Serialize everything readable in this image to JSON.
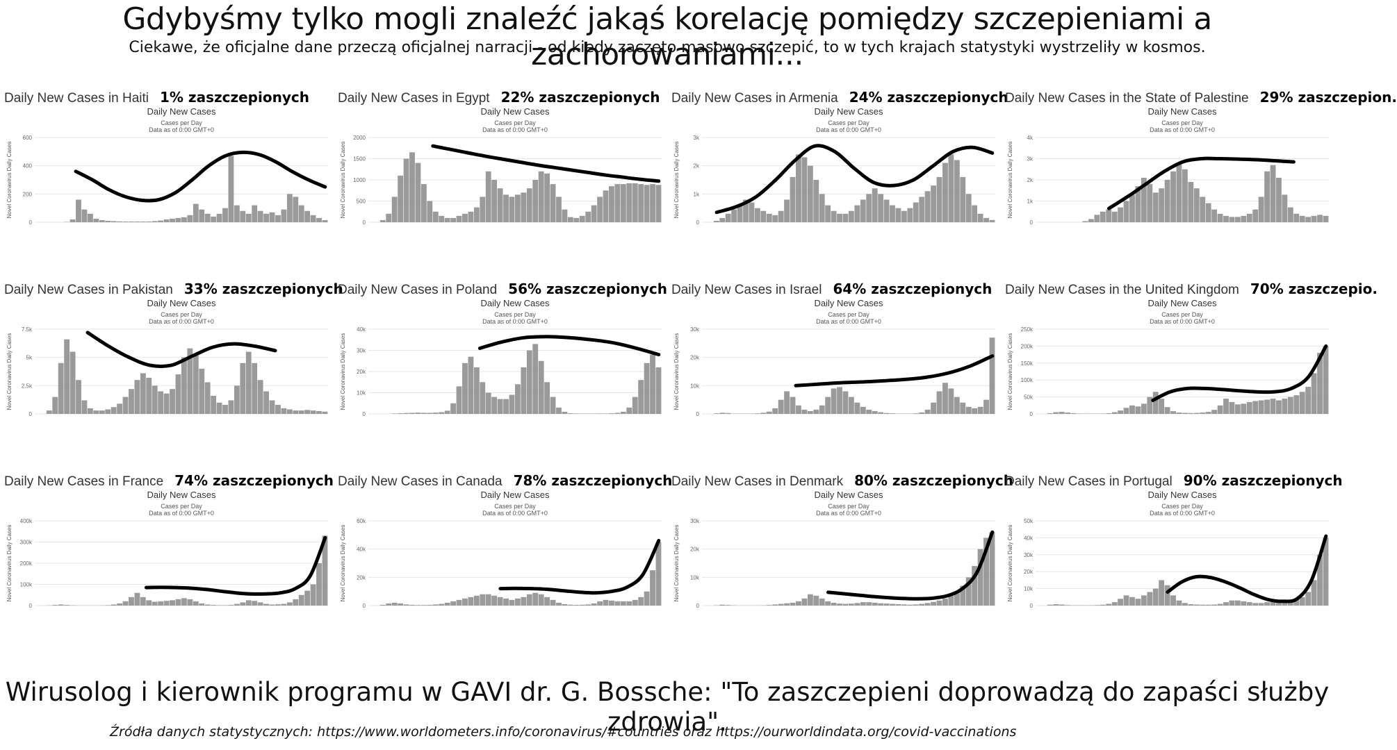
{
  "header": {
    "title": "Gdybyśmy tylko mogli znaleźć jakąś korelację pomiędzy szczepieniami a zachorowaniami...",
    "subtitle": "Ciekawe, że oficjalne dane przeczą oficjalnej narracji - od kiedy zaczęto masowo szczepić, to w tych krajach statystyki wystrzeliły w kosmos."
  },
  "footer": {
    "quote": "Wirusolog i kierownik programu w GAVI dr. G. Bossche: \"To zaszczepieni doprowadzą do zapaści służby zdrowia\".",
    "sources": "Źródła danych statystycznych: https://www.worldometers.info/coronavirus/#countries oraz https://ourworldindata.org/covid-vaccinations"
  },
  "colors": {
    "bars": "#9a9a9a",
    "trend": "#000000",
    "grid": "#e6e6e6",
    "text": "#111111"
  },
  "chart_data": [
    {
      "type": "bar",
      "label": "Daily New Cases in Haiti",
      "vaccinated": "1% zaszczepionych",
      "title": "Daily New Cases",
      "subtitle_1": "Cases per Day",
      "subtitle_2": "Data as of 0:00 GMT+0",
      "ylabel": "Novel Coronavirus Daily Cases",
      "yticks": [
        "0",
        "200",
        "400",
        "600"
      ],
      "ylim": [
        0,
        600
      ],
      "bars": [
        0,
        0,
        0,
        0,
        0,
        2,
        20,
        160,
        90,
        60,
        25,
        15,
        10,
        8,
        6,
        5,
        5,
        5,
        5,
        5,
        8,
        12,
        20,
        25,
        30,
        35,
        50,
        130,
        90,
        60,
        40,
        60,
        100,
        470,
        120,
        80,
        60,
        120,
        80,
        60,
        70,
        50,
        90,
        200,
        180,
        120,
        80,
        50,
        30,
        15
      ],
      "trend": [
        360,
        300,
        230,
        180,
        155,
        160,
        210,
        300,
        400,
        470,
        495,
        480,
        430,
        360,
        300,
        250
      ]
    },
    {
      "type": "bar",
      "label": "Daily New Cases in Egypt",
      "vaccinated": "22% zaszczepionych",
      "title": "Daily New Cases",
      "subtitle_1": "Cases per Day",
      "subtitle_2": "Data as of 0:00 GMT+0",
      "ylabel": "Novel Coronavirus Daily Cases",
      "yticks": [
        "0",
        "500",
        "1000",
        "1500",
        "2000"
      ],
      "ylim": [
        0,
        2000
      ],
      "bars": [
        0,
        0,
        50,
        200,
        600,
        1100,
        1500,
        1650,
        1400,
        900,
        500,
        250,
        150,
        100,
        100,
        150,
        200,
        250,
        350,
        600,
        1200,
        1000,
        800,
        650,
        600,
        650,
        700,
        800,
        1000,
        1200,
        1150,
        900,
        600,
        300,
        120,
        100,
        150,
        250,
        400,
        600,
        750,
        850,
        900,
        900,
        920,
        920,
        900,
        880,
        900,
        880
      ],
      "trend": [
        1800,
        1720,
        1640,
        1560,
        1490,
        1420,
        1350,
        1290,
        1230,
        1170,
        1110,
        1060,
        1010,
        970
      ]
    },
    {
      "type": "bar",
      "label": "Daily New Cases in Armenia",
      "vaccinated": "24% zaszczepionych",
      "title": "Daily New Cases",
      "subtitle_1": "Cases per Day",
      "subtitle_2": "Data as of 0:00 GMT+0",
      "ylabel": "Novel Coronavirus Daily Cases",
      "yticks": [
        "0",
        "1k",
        "2k",
        "3k"
      ],
      "ylim": [
        0,
        3000
      ],
      "bars": [
        0,
        0,
        50,
        150,
        300,
        450,
        600,
        800,
        700,
        500,
        400,
        300,
        250,
        400,
        800,
        1600,
        2400,
        2300,
        2000,
        1500,
        1000,
        600,
        400,
        300,
        300,
        400,
        600,
        800,
        1000,
        1200,
        1000,
        800,
        600,
        500,
        400,
        500,
        700,
        900,
        1100,
        1300,
        1600,
        2100,
        2400,
        2200,
        1600,
        1000,
        600,
        300,
        150,
        80
      ],
      "trend": [
        350,
        550,
        900,
        1500,
        2200,
        2700,
        2500,
        1900,
        1400,
        1300,
        1500,
        2000,
        2500,
        2650,
        2450
      ]
    },
    {
      "type": "bar",
      "label": "Daily New Cases in the State of Palestine",
      "vaccinated": "29% zaszczepion.",
      "title": "Daily New Cases",
      "subtitle_1": "Cases per Day",
      "subtitle_2": "Data as of 0:00 GMT+0",
      "ylabel": "Novel Coronavirus Daily Cases",
      "yticks": [
        "0",
        "1k",
        "2k",
        "3k",
        "4k"
      ],
      "ylim": [
        0,
        4000
      ],
      "bars": [
        0,
        0,
        0,
        0,
        0,
        0,
        0,
        0,
        50,
        150,
        350,
        500,
        600,
        500,
        700,
        1000,
        1300,
        1700,
        2100,
        1800,
        1400,
        1600,
        2000,
        2400,
        2800,
        2500,
        1900,
        1600,
        1200,
        900,
        600,
        400,
        300,
        250,
        250,
        300,
        400,
        600,
        1200,
        2400,
        2700,
        2100,
        1300,
        700,
        400,
        300,
        250,
        300,
        350,
        300
      ],
      "trend": [
        650,
        1200,
        1800,
        2400,
        2850,
        3000,
        3000,
        2980,
        2950,
        2900,
        2850
      ]
    },
    {
      "type": "bar",
      "label": "Daily New Cases in Pakistan",
      "vaccinated": "33% zaszczepionych",
      "title": "Daily New Cases",
      "subtitle_1": "Cases per Day",
      "subtitle_2": "Data as of 0:00 GMT+0",
      "ylabel": "Novel Coronavirus Daily Cases",
      "yticks": [
        "0",
        "2.5k",
        "5k",
        "7.5k"
      ],
      "ylim": [
        0,
        7500
      ],
      "bars": [
        0,
        0,
        300,
        1500,
        4500,
        6600,
        5500,
        3000,
        1200,
        500,
        300,
        300,
        400,
        600,
        900,
        1500,
        2200,
        3000,
        3600,
        3200,
        2500,
        2000,
        1800,
        2200,
        3500,
        5000,
        5800,
        5200,
        4000,
        2800,
        1600,
        1000,
        800,
        1200,
        2500,
        4500,
        5500,
        4500,
        3000,
        2000,
        1200,
        800,
        500,
        400,
        300,
        300,
        350,
        300,
        250,
        200
      ],
      "trend": [
        7200,
        6000,
        5000,
        4300,
        4300,
        5100,
        5900,
        6200,
        6000,
        5600
      ]
    },
    {
      "type": "bar",
      "label": "Daily New Cases in Poland",
      "vaccinated": "56% zaszczepionych",
      "title": "Daily New Cases",
      "subtitle_1": "Cases per Day",
      "subtitle_2": "Data as of 0:00 GMT+0",
      "ylabel": "Novel Coronavirus Daily Cases",
      "yticks": [
        "0",
        "10k",
        "20k",
        "30k",
        "40k"
      ],
      "ylim": [
        0,
        40000
      ],
      "bars": [
        0,
        0,
        0,
        0,
        200,
        300,
        400,
        500,
        600,
        500,
        500,
        600,
        800,
        1500,
        5000,
        13000,
        24000,
        27000,
        22000,
        15000,
        10000,
        8000,
        7000,
        7000,
        9000,
        14000,
        22000,
        30000,
        33000,
        25000,
        15000,
        8000,
        3000,
        1000,
        300,
        200,
        150,
        150,
        150,
        200,
        200,
        300,
        500,
        1000,
        3000,
        8000,
        16000,
        24000,
        28000,
        22000
      ],
      "trend": [
        31000,
        34000,
        36000,
        36500,
        36000,
        35000,
        33500,
        31000,
        28000
      ]
    },
    {
      "type": "bar",
      "label": "Daily New Cases in Israel",
      "vaccinated": "64% zaszczepionych",
      "title": "Daily New Cases",
      "subtitle_1": "Cases per Day",
      "subtitle_2": "Data as of 0:00 GMT+0",
      "ylabel": "Novel Coronavirus Daily Cases",
      "yticks": [
        "0",
        "10k",
        "20k",
        "30k"
      ],
      "ylim": [
        0,
        30000
      ],
      "bars": [
        0,
        0,
        200,
        400,
        300,
        100,
        100,
        100,
        100,
        200,
        400,
        800,
        2000,
        5000,
        8000,
        6000,
        3000,
        1500,
        1000,
        1500,
        3000,
        6000,
        9000,
        9500,
        8000,
        6000,
        4000,
        2500,
        1500,
        1000,
        600,
        300,
        200,
        100,
        100,
        100,
        200,
        500,
        1500,
        4000,
        8000,
        11000,
        9000,
        6000,
        4000,
        2500,
        2000,
        2500,
        5000,
        27000
      ],
      "trend": [
        10000,
        10500,
        11000,
        11300,
        11700,
        12200,
        13000,
        14500,
        17000,
        20500
      ]
    },
    {
      "type": "bar",
      "label": "Daily New Cases in the United Kingdom",
      "vaccinated": "70% zaszczepio.",
      "title": "Daily New Cases",
      "subtitle_1": "Cases per Day",
      "subtitle_2": "Data as of 0:00 GMT+0",
      "ylabel": "Novel Coronavirus Daily Cases",
      "yticks": [
        "0",
        "50k",
        "100k",
        "150k",
        "200k",
        "250k"
      ],
      "ylim": [
        0,
        250000
      ],
      "bars": [
        0,
        0,
        2000,
        5000,
        6000,
        4000,
        2000,
        1000,
        700,
        700,
        800,
        1000,
        2000,
        5000,
        10000,
        18000,
        25000,
        22000,
        30000,
        50000,
        65000,
        45000,
        20000,
        8000,
        4000,
        3000,
        2500,
        3000,
        4000,
        6000,
        12000,
        25000,
        45000,
        35000,
        28000,
        30000,
        35000,
        38000,
        40000,
        42000,
        45000,
        40000,
        45000,
        50000,
        55000,
        65000,
        80000,
        120000,
        180000,
        200000
      ],
      "trend": [
        40000,
        65000,
        75000,
        75000,
        72000,
        68000,
        65000,
        65000,
        75000,
        110000,
        200000
      ]
    },
    {
      "type": "bar",
      "label": "Daily New Cases in France",
      "vaccinated": "74% zaszczepionych",
      "title": "Daily New Cases",
      "subtitle_1": "Cases per Day",
      "subtitle_2": "Data as of 0:00 GMT+0",
      "ylabel": "Novel Coronavirus Daily Cases",
      "yticks": [
        "0",
        "100k",
        "200k",
        "300k",
        "400k"
      ],
      "ylim": [
        0,
        400000
      ],
      "bars": [
        0,
        0,
        1000,
        3000,
        5000,
        3000,
        1500,
        800,
        600,
        600,
        700,
        1000,
        2000,
        5000,
        10000,
        20000,
        40000,
        60000,
        40000,
        25000,
        18000,
        20000,
        22000,
        25000,
        30000,
        35000,
        30000,
        20000,
        10000,
        5000,
        3000,
        2000,
        2000,
        3000,
        8000,
        15000,
        25000,
        22000,
        15000,
        8000,
        5000,
        6000,
        8000,
        15000,
        30000,
        50000,
        70000,
        100000,
        200000,
        330000
      ],
      "trend": [
        85000,
        86000,
        85000,
        82000,
        76000,
        68000,
        60000,
        55000,
        55000,
        60000,
        80000,
        140000,
        320000
      ]
    },
    {
      "type": "bar",
      "label": "Daily New Cases in Canada",
      "vaccinated": "78% zaszczepionych",
      "title": "Daily New Cases",
      "subtitle_1": "Cases per Day",
      "subtitle_2": "Data as of 0:00 GMT+0",
      "ylabel": "Novel Coronavirus Daily Cases",
      "yticks": [
        "0",
        "20k",
        "40k",
        "60k"
      ],
      "ylim": [
        0,
        60000
      ],
      "bars": [
        0,
        0,
        500,
        1500,
        2000,
        1500,
        800,
        500,
        400,
        400,
        500,
        800,
        1200,
        2000,
        3000,
        4000,
        5000,
        6000,
        7000,
        8000,
        8000,
        7000,
        6000,
        5000,
        4000,
        5000,
        6000,
        8000,
        9000,
        8000,
        6000,
        4000,
        2000,
        1000,
        600,
        500,
        600,
        800,
        1500,
        3000,
        4000,
        3500,
        3000,
        3000,
        3000,
        4000,
        6000,
        10000,
        25000,
        45000
      ],
      "trend": [
        12000,
        12200,
        12000,
        11500,
        10500,
        9500,
        9000,
        10000,
        13000,
        22000,
        46000
      ]
    },
    {
      "type": "bar",
      "label": "Daily New Cases in Denmark",
      "vaccinated": "80% zaszczepionych",
      "title": "Daily New Cases",
      "subtitle_1": "Cases per Day",
      "subtitle_2": "Data as of 0:00 GMT+0",
      "ylabel": "Novel Coronavirus Daily Cases",
      "yticks": [
        "0",
        "10k",
        "20k",
        "30k"
      ],
      "ylim": [
        0,
        30000
      ],
      "bars": [
        0,
        0,
        100,
        300,
        200,
        100,
        50,
        50,
        50,
        50,
        100,
        200,
        400,
        600,
        800,
        1000,
        1500,
        2500,
        4000,
        3500,
        2500,
        1500,
        1000,
        700,
        600,
        700,
        900,
        1200,
        1200,
        1000,
        800,
        700,
        600,
        500,
        400,
        300,
        400,
        600,
        900,
        1300,
        1800,
        2500,
        3500,
        5000,
        7000,
        10000,
        14000,
        20000,
        24000,
        26000
      ],
      "trend": [
        4700,
        4200,
        3700,
        3200,
        2800,
        2500,
        2400,
        2600,
        3500,
        6000,
        12000,
        26000
      ]
    },
    {
      "type": "bar",
      "label": "Daily New Cases in Portugal",
      "vaccinated": "90% zaszczepionych",
      "title": "Daily New Cases",
      "subtitle_1": "Cases per Day",
      "subtitle_2": "Data as of 0:00 GMT+0",
      "ylabel": "Novel Coronavirus Daily Cases",
      "yticks": [
        "0",
        "10k",
        "20k",
        "30k",
        "40k",
        "50k"
      ],
      "ylim": [
        0,
        50000
      ],
      "bars": [
        0,
        0,
        500,
        800,
        600,
        300,
        200,
        200,
        200,
        200,
        300,
        500,
        1000,
        2000,
        4000,
        6000,
        5000,
        4000,
        6000,
        8000,
        10000,
        15000,
        12000,
        6000,
        3000,
        1500,
        800,
        600,
        500,
        500,
        600,
        1000,
        2000,
        3000,
        3000,
        2500,
        2000,
        1500,
        1500,
        2000,
        2000,
        2500,
        3000,
        3500,
        4000,
        5000,
        8000,
        15000,
        30000,
        40000
      ],
      "trend": [
        8000,
        14000,
        17000,
        16500,
        14000,
        10500,
        6500,
        3500,
        2500,
        4000,
        15000,
        41000
      ]
    }
  ]
}
